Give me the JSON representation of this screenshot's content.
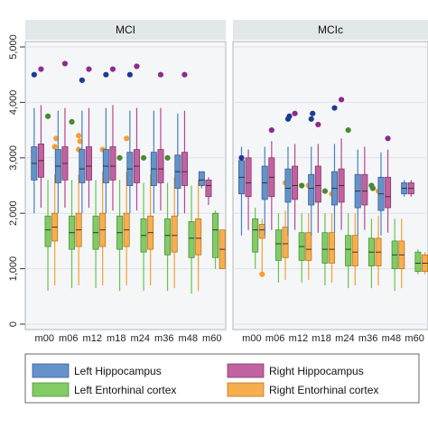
{
  "chart_data": {
    "type": "box",
    "categories": [
      "m00",
      "m06",
      "m12",
      "m18",
      "m24",
      "m36",
      "m48",
      "m60"
    ],
    "ylim": [
      0,
      5000
    ],
    "yticks": [
      0,
      1000,
      2000,
      3000,
      4000,
      5000
    ],
    "ytick_labels": [
      "0",
      "1,000",
      "2,000",
      "3,000",
      "4,000",
      "5,000"
    ],
    "grid": true,
    "legend_position": "bottom",
    "colors": {
      "left_hippocampus": "#4a7fc1",
      "right_hippocampus": "#b5478f",
      "left_entorhinal": "#6cc24a",
      "right_entorhinal": "#f5a030",
      "outlier_dark_blue": "#1f3a93",
      "outlier_purple": "#8e2a8e",
      "panel_header": "#e2e7ea",
      "plot_bg": "#f4f6f8"
    },
    "series": [
      {
        "name": "Left Hippocampus",
        "key": "left_hippocampus"
      },
      {
        "name": "Right Hippocampus",
        "key": "right_hippocampus"
      },
      {
        "name": "Left Entorhinal cortex",
        "key": "left_entorhinal"
      },
      {
        "name": "Right Entorhinal cortex",
        "key": "right_entorhinal"
      }
    ],
    "panels": [
      {
        "title": "MCI",
        "groups": [
          {
            "label": "m00",
            "boxes": [
              {
                "min": 2000,
                "q1": 2600,
                "median": 2900,
                "q3": 3200,
                "max": 3900,
                "outliers": [
                  4500
                ]
              },
              {
                "min": 2100,
                "q1": 2650,
                "median": 2950,
                "q3": 3250,
                "max": 3950,
                "outliers": [
                  4600
                ]
              },
              {
                "min": 600,
                "q1": 1400,
                "median": 1700,
                "q3": 1950,
                "max": 2600,
                "outliers": [
                  3750
                ]
              },
              {
                "min": 700,
                "q1": 1500,
                "median": 1750,
                "q3": 2000,
                "max": 2700,
                "outliers": [
                  3200,
                  3350
                ]
              }
            ]
          },
          {
            "label": "m06",
            "boxes": [
              {
                "min": 2000,
                "q1": 2550,
                "median": 2850,
                "q3": 3150,
                "max": 3850,
                "outliers": []
              },
              {
                "min": 2100,
                "q1": 2600,
                "median": 2900,
                "q3": 3200,
                "max": 3900,
                "outliers": [
                  4700
                ]
              },
              {
                "min": 650,
                "q1": 1350,
                "median": 1650,
                "q3": 1950,
                "max": 2600,
                "outliers": [
                  3650
                ]
              },
              {
                "min": 700,
                "q1": 1400,
                "median": 1700,
                "q3": 2000,
                "max": 2700,
                "outliers": [
                  3150,
                  3300,
                  3400
                ]
              }
            ]
          },
          {
            "label": "m12",
            "boxes": [
              {
                "min": 2000,
                "q1": 2550,
                "median": 2800,
                "q3": 3150,
                "max": 3850,
                "outliers": [
                  4400
                ]
              },
              {
                "min": 2100,
                "q1": 2600,
                "median": 2850,
                "q3": 3200,
                "max": 3900,
                "outliers": [
                  4600
                ]
              },
              {
                "min": 650,
                "q1": 1350,
                "median": 1650,
                "q3": 1950,
                "max": 2600,
                "outliers": []
              },
              {
                "min": 700,
                "q1": 1400,
                "median": 1700,
                "q3": 2000,
                "max": 2750,
                "outliers": [
                  3150
                ]
              }
            ]
          },
          {
            "label": "m18",
            "boxes": [
              {
                "min": 2000,
                "q1": 2550,
                "median": 2850,
                "q3": 3150,
                "max": 3900,
                "outliers": [
                  4500
                ]
              },
              {
                "min": 2050,
                "q1": 2600,
                "median": 2850,
                "q3": 3200,
                "max": 3950,
                "outliers": [
                  4600
                ]
              },
              {
                "min": 600,
                "q1": 1350,
                "median": 1650,
                "q3": 1950,
                "max": 2600,
                "outliers": [
                  3000
                ]
              },
              {
                "min": 700,
                "q1": 1400,
                "median": 1700,
                "q3": 2000,
                "max": 2750,
                "outliers": [
                  3350
                ]
              }
            ]
          },
          {
            "label": "m24",
            "boxes": [
              {
                "min": 2000,
                "q1": 2500,
                "median": 2800,
                "q3": 3100,
                "max": 3850,
                "outliers": [
                  4500
                ]
              },
              {
                "min": 2050,
                "q1": 2550,
                "median": 2850,
                "q3": 3150,
                "max": 3900,
                "outliers": [
                  4650
                ]
              },
              {
                "min": 600,
                "q1": 1300,
                "median": 1600,
                "q3": 1900,
                "max": 2550,
                "outliers": [
                  3000
                ]
              },
              {
                "min": 700,
                "q1": 1350,
                "median": 1650,
                "q3": 1950,
                "max": 2700,
                "outliers": []
              }
            ]
          },
          {
            "label": "m36",
            "boxes": [
              {
                "min": 2000,
                "q1": 2500,
                "median": 2800,
                "q3": 3100,
                "max": 3850,
                "outliers": []
              },
              {
                "min": 2050,
                "q1": 2550,
                "median": 2800,
                "q3": 3150,
                "max": 3900,
                "outliers": [
                  4500
                ]
              },
              {
                "min": 600,
                "q1": 1250,
                "median": 1600,
                "q3": 1900,
                "max": 2550,
                "outliers": [
                  3000
                ]
              },
              {
                "min": 650,
                "q1": 1300,
                "median": 1600,
                "q3": 1950,
                "max": 2650,
                "outliers": []
              }
            ]
          },
          {
            "label": "m48",
            "boxes": [
              {
                "min": 1950,
                "q1": 2450,
                "median": 2750,
                "q3": 3050,
                "max": 3800,
                "outliers": []
              },
              {
                "min": 2000,
                "q1": 2500,
                "median": 2750,
                "q3": 3100,
                "max": 3850,
                "outliers": [
                  4500
                ]
              },
              {
                "min": 550,
                "q1": 1200,
                "median": 1550,
                "q3": 1850,
                "max": 2500,
                "outliers": []
              },
              {
                "min": 600,
                "q1": 1250,
                "median": 1550,
                "q3": 1900,
                "max": 2600,
                "outliers": []
              }
            ]
          },
          {
            "label": "m60",
            "boxes": [
              {
                "min": 2450,
                "q1": 2500,
                "median": 2600,
                "q3": 2750,
                "max": 2750,
                "outliers": []
              },
              {
                "min": 2150,
                "q1": 2300,
                "median": 2500,
                "q3": 2600,
                "max": 2650,
                "outliers": []
              },
              {
                "min": 1000,
                "q1": 1200,
                "median": 1700,
                "q3": 2000,
                "max": 2050,
                "outliers": []
              },
              {
                "min": 1000,
                "q1": 1000,
                "median": 1350,
                "q3": 1700,
                "max": 1700,
                "outliers": []
              }
            ]
          }
        ]
      },
      {
        "title": "MCIc",
        "groups": [
          {
            "label": "m00",
            "boxes": [
              {
                "min": 1600,
                "q1": 2350,
                "median": 2650,
                "q3": 2950,
                "max": 3200,
                "outliers": [
                  3000
                ]
              },
              {
                "min": 1700,
                "q1": 2300,
                "median": 2550,
                "q3": 3000,
                "max": 3150,
                "outliers": []
              },
              {
                "min": 1000,
                "q1": 1300,
                "median": 1700,
                "q3": 1900,
                "max": 2100,
                "outliers": []
              },
              {
                "min": 900,
                "q1": 1550,
                "median": 1700,
                "q3": 1800,
                "max": 1900,
                "outliers": [
                  900
                ]
              }
            ]
          },
          {
            "label": "m06",
            "boxes": [
              {
                "min": 1600,
                "q1": 2250,
                "median": 2550,
                "q3": 2850,
                "max": 3200,
                "outliers": []
              },
              {
                "min": 1700,
                "q1": 2300,
                "median": 2650,
                "q3": 3000,
                "max": 3300,
                "outliers": [
                  3500
                ]
              },
              {
                "min": 750,
                "q1": 1150,
                "median": 1450,
                "q3": 1700,
                "max": 2000,
                "outliers": []
              },
              {
                "min": 800,
                "q1": 1200,
                "median": 1450,
                "q3": 1750,
                "max": 2050,
                "outliers": [
                  2550
                ]
              }
            ]
          },
          {
            "label": "m12",
            "boxes": [
              {
                "min": 1600,
                "q1": 2200,
                "median": 2450,
                "q3": 2800,
                "max": 3200,
                "outliers": [
                  3700,
                  3750
                ]
              },
              {
                "min": 1700,
                "q1": 2250,
                "median": 2500,
                "q3": 2850,
                "max": 3250,
                "outliers": [
                  3800
                ]
              },
              {
                "min": 750,
                "q1": 1150,
                "median": 1400,
                "q3": 1650,
                "max": 2000,
                "outliers": [
                  2500
                ]
              },
              {
                "min": 800,
                "q1": 1150,
                "median": 1350,
                "q3": 1650,
                "max": 2000,
                "outliers": [
                  2500
                ]
              }
            ]
          },
          {
            "label": "m18",
            "boxes": [
              {
                "min": 1600,
                "q1": 2150,
                "median": 2450,
                "q3": 2700,
                "max": 3200,
                "outliers": [
                  3700,
                  3800
                ]
              },
              {
                "min": 1650,
                "q1": 2200,
                "median": 2500,
                "q3": 2850,
                "max": 3250,
                "outliers": [
                  3600
                ]
              },
              {
                "min": 700,
                "q1": 1100,
                "median": 1350,
                "q3": 1650,
                "max": 2000,
                "outliers": [
                  2400
                ]
              },
              {
                "min": 750,
                "q1": 1100,
                "median": 1350,
                "q3": 1650,
                "max": 2000,
                "outliers": [
                  2350
                ]
              }
            ]
          },
          {
            "label": "m24",
            "boxes": [
              {
                "min": 1650,
                "q1": 2150,
                "median": 2450,
                "q3": 2750,
                "max": 3250,
                "outliers": [
                  3900
                ]
              },
              {
                "min": 1700,
                "q1": 2200,
                "median": 2500,
                "q3": 2800,
                "max": 3350,
                "outliers": [
                  4050
                ]
              },
              {
                "min": 650,
                "q1": 1050,
                "median": 1350,
                "q3": 1600,
                "max": 2000,
                "outliers": [
                  3500
                ]
              },
              {
                "min": 700,
                "q1": 1050,
                "median": 1300,
                "q3": 1600,
                "max": 2000,
                "outliers": []
              }
            ]
          },
          {
            "label": "m36",
            "boxes": [
              {
                "min": 1600,
                "q1": 2100,
                "median": 2400,
                "q3": 2700,
                "max": 3150,
                "outliers": []
              },
              {
                "min": 1700,
                "q1": 2150,
                "median": 2400,
                "q3": 2700,
                "max": 3200,
                "outliers": []
              },
              {
                "min": 650,
                "q1": 1050,
                "median": 1300,
                "q3": 1550,
                "max": 1900,
                "outliers": [
                  2500,
                  2450
                ]
              },
              {
                "min": 700,
                "q1": 1050,
                "median": 1300,
                "q3": 1550,
                "max": 1950,
                "outliers": [
                  2400
                ]
              }
            ]
          },
          {
            "label": "m48",
            "boxes": [
              {
                "min": 1600,
                "q1": 2050,
                "median": 2350,
                "q3": 2650,
                "max": 3100,
                "outliers": []
              },
              {
                "min": 1650,
                "q1": 2100,
                "median": 2300,
                "q3": 2650,
                "max": 3150,
                "outliers": [
                  3350
                ]
              },
              {
                "min": 600,
                "q1": 1000,
                "median": 1250,
                "q3": 1500,
                "max": 1900,
                "outliers": []
              },
              {
                "min": 650,
                "q1": 1000,
                "median": 1250,
                "q3": 1500,
                "max": 1900,
                "outliers": []
              }
            ]
          },
          {
            "label": "m60",
            "boxes": [
              {
                "min": 2300,
                "q1": 2350,
                "median": 2450,
                "q3": 2550,
                "max": 2600,
                "outliers": []
              },
              {
                "min": 2300,
                "q1": 2350,
                "median": 2450,
                "q3": 2550,
                "max": 2600,
                "outliers": []
              },
              {
                "min": 900,
                "q1": 950,
                "median": 1100,
                "q3": 1300,
                "max": 1350,
                "outliers": []
              },
              {
                "min": 900,
                "q1": 950,
                "median": 1100,
                "q3": 1250,
                "max": 1300,
                "outliers": []
              }
            ]
          }
        ]
      }
    ]
  }
}
